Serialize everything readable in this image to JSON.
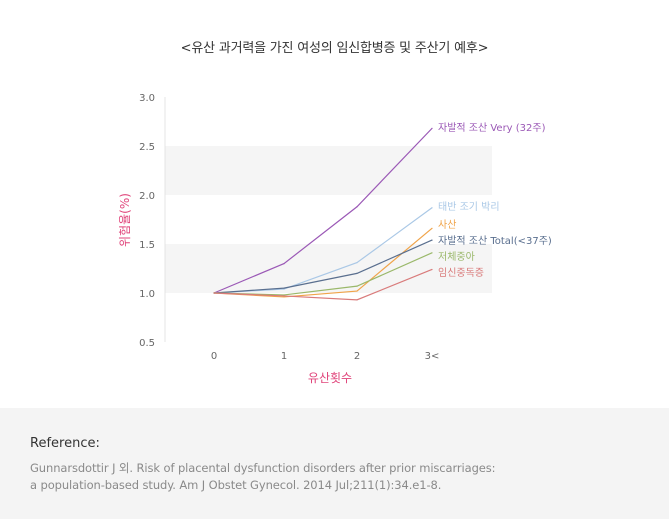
{
  "chart_data": {
    "type": "line",
    "title": "<유산 과거력을 가진 여성의 임신합병증 및 주산기 예후>",
    "xlabel": "유산횟수",
    "ylabel": "위험율(%)",
    "categories": [
      "0",
      "1",
      "2",
      "3<"
    ],
    "yticks": [
      "3.0",
      "2.5",
      "2.0",
      "1.5",
      "1.0",
      "0.5"
    ],
    "ylim": [
      0.5,
      3.0
    ],
    "grid": "alternating horizontal bands",
    "series": [
      {
        "name": "자발적 조산 Very (32주)",
        "values": [
          1.0,
          1.3,
          1.88,
          2.68
        ],
        "color": "#9b59b6"
      },
      {
        "name": "태반 조기 박리",
        "values": [
          1.0,
          1.04,
          1.31,
          1.87
        ],
        "color": "#aac8e6"
      },
      {
        "name": "사산",
        "values": [
          1.0,
          0.96,
          1.02,
          1.66
        ],
        "color": "#f0a44a"
      },
      {
        "name": "자발적 조산 Total(<37주)",
        "values": [
          1.0,
          1.05,
          1.2,
          1.54
        ],
        "color": "#5a6f8f"
      },
      {
        "name": "저체중아",
        "values": [
          1.0,
          0.98,
          1.07,
          1.41
        ],
        "color": "#9ab86a"
      },
      {
        "name": "임신중독증",
        "values": [
          1.0,
          0.97,
          0.93,
          1.24
        ],
        "color": "#d97b7b"
      }
    ],
    "colors": {
      "axis_label": "#e0457b",
      "tick": "#666666",
      "band": "#f5f5f5"
    }
  },
  "reference": {
    "heading": "Reference:",
    "line1": "Gunnarsdottir J 외. Risk of placental dysfunction disorders after prior miscarriages:",
    "line2": "a population-based study. Am J Obstet Gynecol. 2014 Jul;211(1):34.e1-8."
  }
}
